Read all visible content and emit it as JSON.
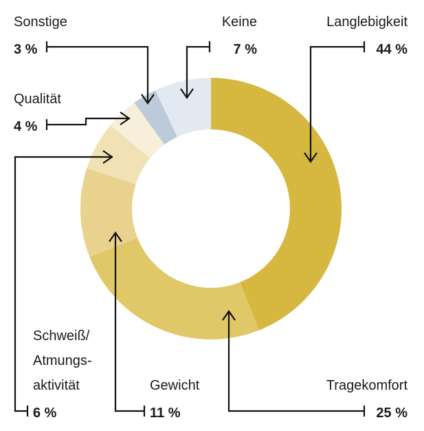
{
  "chart_data": {
    "type": "pie",
    "variant": "donut",
    "title": "",
    "slices": [
      {
        "name": "Langlebigkeit",
        "value": 44,
        "value_label": "44 %",
        "color": "#d6b840",
        "label_lines": [
          "Langlebigkeit"
        ]
      },
      {
        "name": "Tragekomfort",
        "value": 25,
        "value_label": "25 %",
        "color": "#e0c767",
        "label_lines": [
          "Tragekomfort"
        ]
      },
      {
        "name": "Gewicht",
        "value": 11,
        "value_label": "11 %",
        "color": "#e9d28e",
        "label_lines": [
          "Gewicht"
        ]
      },
      {
        "name": "Schweiß/Atmungsaktivität",
        "value": 6,
        "value_label": "6 %",
        "color": "#f1e2b5",
        "label_lines": [
          "Schweiß/",
          "Atmungs-",
          "aktivität"
        ]
      },
      {
        "name": "Qualität",
        "value": 4,
        "value_label": "4 %",
        "color": "#f7efda",
        "label_lines": [
          "Qualität"
        ]
      },
      {
        "name": "Sonstige",
        "value": 3,
        "value_label": "3 %",
        "color": "#bccbda",
        "label_lines": [
          "Sonstige"
        ]
      },
      {
        "name": "Keine",
        "value": 7,
        "value_label": "7 %",
        "color": "#e3e9f2",
        "label_lines": [
          "Keine"
        ]
      }
    ]
  }
}
